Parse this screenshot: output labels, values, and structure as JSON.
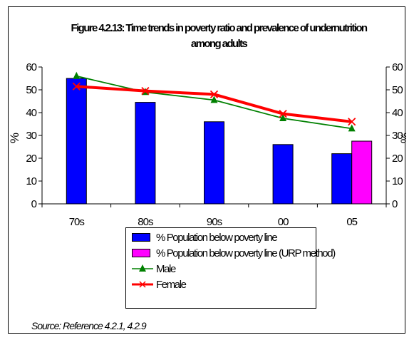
{
  "chart_data": {
    "type": "bar",
    "title_line1": "Figure 4.2.13: Time trends in poverty ratio and prevalence of undernutrition",
    "title_line2": "among adults",
    "categories": [
      "70s",
      "80s",
      "90s",
      "00",
      "05"
    ],
    "ylabel_left": "%",
    "ylabel_right": "%",
    "ylim": [
      0,
      60
    ],
    "yticks": [
      0,
      10,
      20,
      30,
      40,
      50,
      60
    ],
    "grid": false,
    "legend_position": "bottom",
    "series": [
      {
        "name": "% Population below poverty line",
        "kind": "bar",
        "color": "#0000ff",
        "values": [
          55,
          44.5,
          36,
          26,
          22
        ]
      },
      {
        "name": "% Population below poverty line (URP method)",
        "kind": "bar",
        "color": "#ff00ff",
        "values": [
          null,
          null,
          null,
          null,
          27.5
        ]
      },
      {
        "name": "Male",
        "kind": "line",
        "color": "#008000",
        "marker": "triangle",
        "values": [
          56,
          49,
          45.5,
          37.5,
          33
        ]
      },
      {
        "name": "Female",
        "kind": "line",
        "color": "#ff0000",
        "marker": "x",
        "values": [
          51.5,
          49.5,
          48,
          39.5,
          36
        ]
      }
    ],
    "source": "Source: Reference 4.2.1, 4.2.9"
  }
}
